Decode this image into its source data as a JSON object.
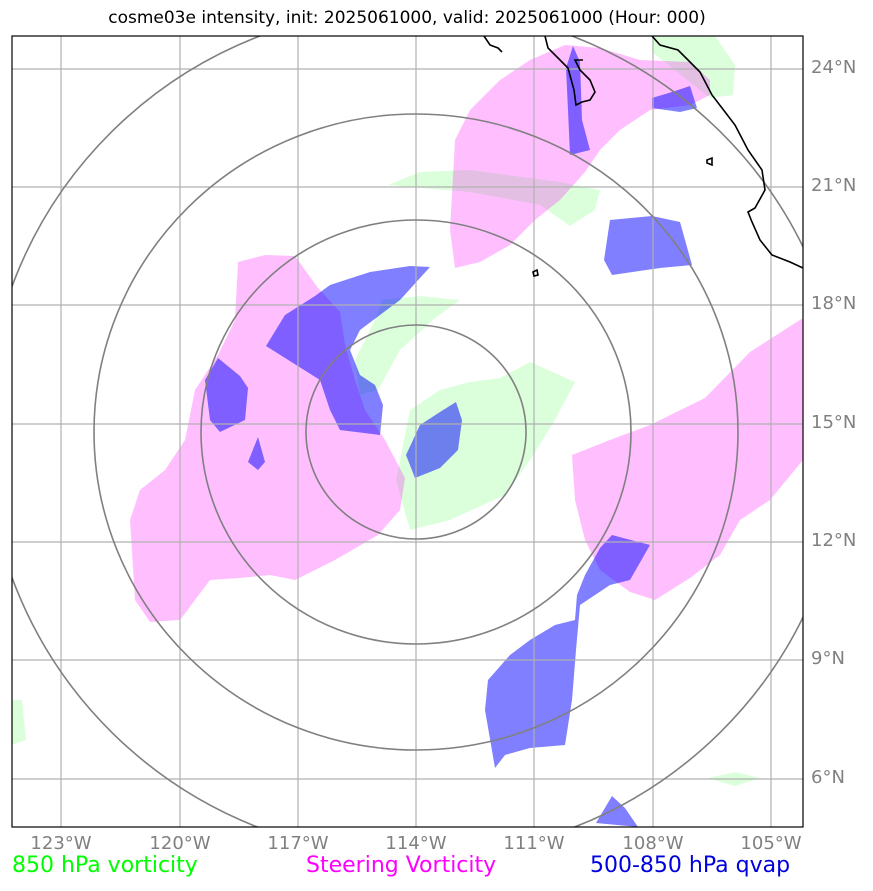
{
  "title": "cosme03e intensity, init: 2025061000, valid: 2025061000 (Hour: 000)",
  "colors": {
    "vorticity_850": "#00ff00",
    "steering_vorticity": "#ff00ff",
    "qvap_500_850": "#0000ff",
    "range_rings": "#808080",
    "grid": "#b0b0b0",
    "coastline": "#000000"
  },
  "lat_labels": [
    "24°N",
    "21°N",
    "18°N",
    "15°N",
    "12°N",
    "9°N",
    "6°N"
  ],
  "lon_labels": [
    "123°W",
    "120°W",
    "117°W",
    "114°W",
    "111°W",
    "108°W",
    "105°W"
  ],
  "legend": {
    "green": "850 hPa vorticity",
    "magenta": "Steering Vorticity",
    "blue": "500-850 hPa qvap"
  }
}
